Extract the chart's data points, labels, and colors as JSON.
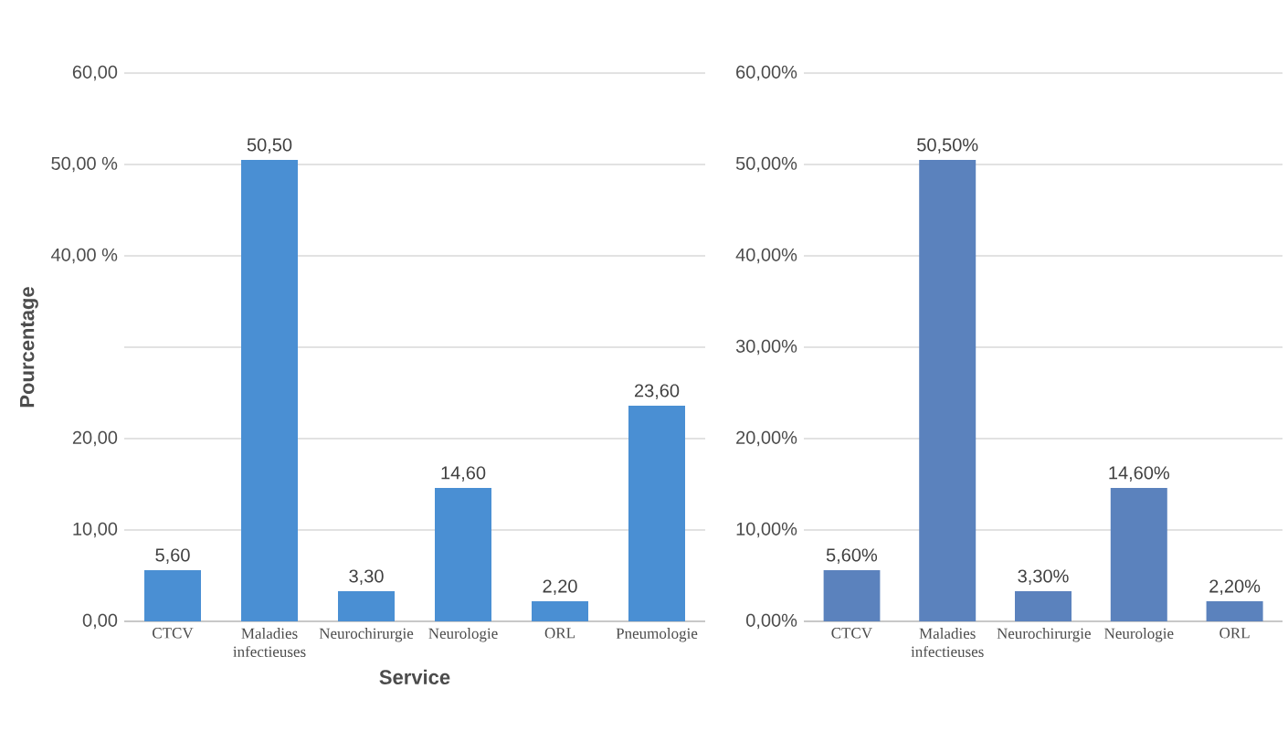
{
  "chart_data": [
    {
      "type": "bar",
      "xlabel": "Service",
      "ylabel": "Pourcentage",
      "categories": [
        "CTCV",
        "Maladies infectieuses",
        "Neurochirurgie",
        "Neurologie",
        "ORL",
        "Pneumologie"
      ],
      "values": [
        5.6,
        50.5,
        3.3,
        14.6,
        2.2,
        23.6
      ],
      "value_labels": [
        "5,60",
        "50,50",
        "3,30",
        "14,60",
        "2,20",
        "23,60"
      ],
      "color": "#4a8fd3",
      "ylim": [
        0,
        60
      ],
      "yticks": [
        {
          "value": 0,
          "label": "0,00"
        },
        {
          "value": 10,
          "label": "10,00"
        },
        {
          "value": 20,
          "label": "20,00"
        },
        {
          "value": 30,
          "label": null
        },
        {
          "value": 40,
          "label": "40,00 %"
        },
        {
          "value": 50,
          "label": "50,00 %"
        },
        {
          "value": 60,
          "label": "60,00"
        }
      ],
      "grid": "y"
    },
    {
      "type": "bar",
      "categories": [
        "CTCV",
        "Maladies infectieuses",
        "Neurochirurgie",
        "Neurologie",
        "ORL"
      ],
      "values": [
        5.6,
        50.5,
        3.3,
        14.6,
        2.2
      ],
      "value_labels": [
        "5,60%",
        "50,50%",
        "3,30%",
        "14,60%",
        "2,20%"
      ],
      "color": "#5b82bd",
      "ylim": [
        0,
        60
      ],
      "yticks": [
        {
          "value": 0,
          "label": "0,00%"
        },
        {
          "value": 10,
          "label": "10,00%"
        },
        {
          "value": 20,
          "label": "20,00%"
        },
        {
          "value": 30,
          "label": "30,00%"
        },
        {
          "value": 40,
          "label": "40,00%"
        },
        {
          "value": 50,
          "label": "50,00%"
        },
        {
          "value": 60,
          "label": "60,00%"
        }
      ],
      "grid": "y"
    }
  ]
}
